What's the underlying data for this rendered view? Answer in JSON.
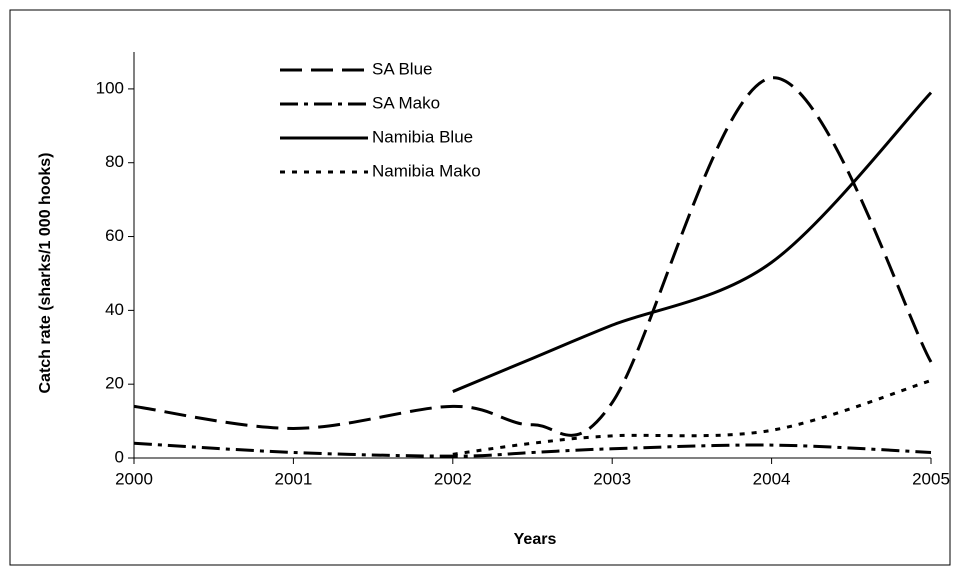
{
  "chart_data": {
    "type": "line",
    "x_label": "Years",
    "y_label": "Catch rate (sharks/1 000 hooks)",
    "x": [
      2000,
      2001,
      2002,
      2002.5,
      2003,
      2004,
      2005
    ],
    "xlim": [
      2000,
      2005
    ],
    "xticks": [
      2000,
      2001,
      2002,
      2003,
      2004,
      2005
    ],
    "ylim": [
      0,
      110
    ],
    "yticks": [
      0,
      20,
      40,
      60,
      80,
      100
    ],
    "legend": "upper left",
    "series": [
      {
        "name": "SA Blue",
        "color": "#000000",
        "dash": "long-dash",
        "values": [
          14,
          8,
          14,
          9,
          15,
          103,
          26
        ]
      },
      {
        "name": "SA Mako",
        "color": "#000000",
        "dash": "dash-dot",
        "values": [
          4,
          1.5,
          0.5,
          1.5,
          2.5,
          3.5,
          1.5
        ]
      },
      {
        "name": "Namibia Blue",
        "color": "#000000",
        "dash": "solid",
        "values": [
          null,
          null,
          18,
          27,
          36,
          53,
          99
        ]
      },
      {
        "name": "Namibia Mako",
        "color": "#000000",
        "dash": "dotted",
        "values": [
          null,
          null,
          1,
          4,
          6,
          7.5,
          21
        ]
      }
    ]
  }
}
